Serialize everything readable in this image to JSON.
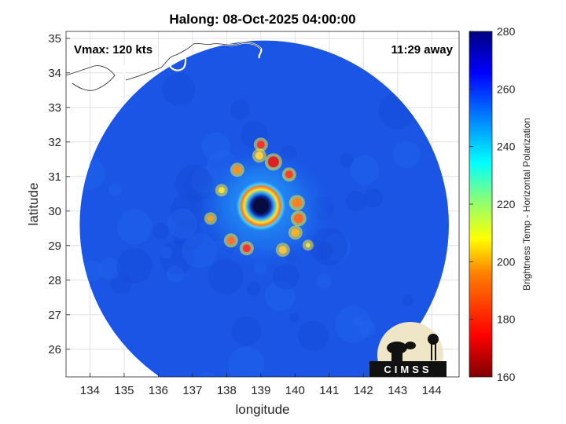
{
  "chart_data": {
    "type": "heatmap",
    "title": "Halong: 08-Oct-2025 04:00:00",
    "xlabel": "longitude",
    "ylabel": "latitude",
    "xlim": [
      133.3,
      144.8
    ],
    "ylim": [
      25.2,
      35.2
    ],
    "x_ticks": [
      134,
      135,
      136,
      137,
      138,
      139,
      140,
      141,
      142,
      143,
      144
    ],
    "y_ticks": [
      26,
      27,
      28,
      29,
      30,
      31,
      32,
      33,
      34,
      35
    ],
    "grid": true,
    "annotations": {
      "vmax": "Vmax: 120 kts",
      "time_away": "11:29 away"
    },
    "storm_center": {
      "lon": 139.0,
      "lat": 30.15
    },
    "swath": {
      "center_lon": 139.1,
      "center_lat": 29.6,
      "radius_deg": 5.4
    },
    "colorbar": {
      "label": "Brightness Temp - Horizontal Polarization",
      "min": 160,
      "max": 280,
      "ticks": [
        160,
        180,
        200,
        220,
        240,
        260,
        280
      ],
      "colormap": "jet"
    },
    "logo_text": "CIMSS"
  },
  "colors": {
    "background_field": "#1a55e6",
    "land_outline": "#ffffff",
    "axes_text": "#262626"
  }
}
